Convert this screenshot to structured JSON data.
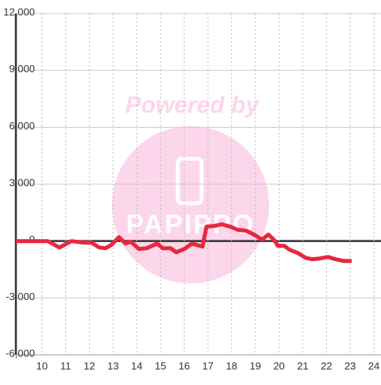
{
  "chart_data": {
    "type": "line",
    "watermark": {
      "text": "Powered by",
      "logo": "PAPIPPO"
    },
    "x": [
      8.9,
      10.24,
      10.74,
      11.24,
      11.75,
      12.08,
      12.42,
      12.68,
      12.92,
      13.25,
      13.52,
      13.75,
      14.09,
      14.42,
      14.86,
      15.09,
      15.43,
      15.66,
      16.0,
      16.33,
      16.77,
      16.94,
      17.27,
      17.6,
      17.94,
      18.27,
      18.61,
      18.94,
      19.28,
      19.55,
      19.78,
      19.95,
      20.22,
      20.45,
      20.79,
      21.12,
      21.39,
      21.72,
      22.06,
      22.39,
      22.73,
      23.06
    ],
    "series": [
      {
        "color": "#e8283c",
        "values": [
          0,
          0,
          -340,
          0,
          -80,
          -80,
          -340,
          -380,
          -210,
          210,
          -130,
          -40,
          -420,
          -380,
          -130,
          -380,
          -380,
          -590,
          -420,
          -130,
          -290,
          760,
          800,
          880,
          760,
          590,
          550,
          340,
          80,
          340,
          80,
          -250,
          -250,
          -460,
          -630,
          -880,
          -960,
          -920,
          -840,
          -960,
          -1050,
          -1050
        ]
      }
    ],
    "xlim": [
      8.9,
      24.3
    ],
    "xticks": [
      10,
      11,
      12,
      13,
      14,
      15,
      16,
      17,
      18,
      19,
      20,
      21,
      22,
      23,
      24
    ],
    "ylim": [
      -6000,
      12000
    ],
    "yticks": [
      {
        "value": -6000,
        "label": "-6,000"
      },
      {
        "value": -3000,
        "label": "-3,000"
      },
      0,
      {
        "value": 3000,
        "label": "3,000"
      },
      {
        "value": 6000,
        "label": "6,000"
      },
      {
        "value": 9000,
        "label": "9,000"
      },
      {
        "value": 12000,
        "label": "12,000"
      }
    ],
    "grid": true
  }
}
